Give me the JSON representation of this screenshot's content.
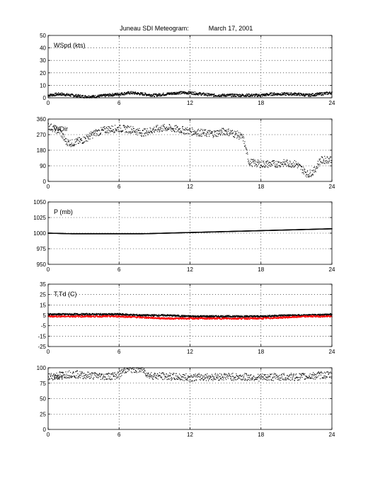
{
  "figure": {
    "title_left": "Juneau SDI Meteogram:",
    "title_right": "March 17, 2001"
  },
  "chart_data": [
    {
      "type": "line",
      "label": "WSpd (kts)",
      "xlim": [
        0,
        24
      ],
      "ylim": [
        0,
        50
      ],
      "xticks": [
        "0",
        "6",
        "12",
        "18",
        "24"
      ],
      "yticks": [
        "0",
        "10",
        "20",
        "30",
        "40",
        "50"
      ],
      "grid": true,
      "series": [
        {
          "color": "#000000",
          "x": [
            0,
            1,
            2,
            3,
            4,
            5,
            6,
            7,
            8,
            9,
            10,
            11,
            12,
            13,
            14,
            15,
            16,
            17,
            18,
            19,
            20,
            21,
            22,
            23,
            24
          ],
          "y": [
            2,
            3,
            2,
            1,
            1,
            2,
            3,
            4,
            3,
            2,
            3,
            4,
            4,
            3,
            2,
            2,
            2,
            2,
            2,
            3,
            3,
            3,
            2,
            3,
            4
          ]
        }
      ]
    },
    {
      "type": "scatter",
      "label": "WDir",
      "xlim": [
        0,
        24
      ],
      "ylim": [
        0,
        360
      ],
      "xticks": [
        "0",
        "6",
        "12",
        "18",
        "24"
      ],
      "yticks": [
        "0",
        "90",
        "180",
        "270",
        "360"
      ],
      "grid": true,
      "series": [
        {
          "color": "#000000",
          "x": [
            0,
            1,
            1.5,
            2,
            3,
            4,
            5,
            6,
            7,
            8,
            9,
            10,
            11,
            12,
            13,
            14,
            15,
            16,
            16.5,
            17,
            18,
            19,
            20,
            21,
            21.5,
            22,
            22.5,
            23,
            24
          ],
          "y": [
            320,
            290,
            230,
            220,
            240,
            280,
            300,
            305,
            300,
            280,
            300,
            310,
            300,
            290,
            280,
            275,
            290,
            270,
            250,
            110,
            100,
            100,
            105,
            100,
            70,
            40,
            60,
            120,
            130
          ]
        }
      ]
    },
    {
      "type": "line",
      "label": "P (mb)",
      "xlim": [
        0,
        24
      ],
      "ylim": [
        950,
        1050
      ],
      "xticks": [
        "0",
        "6",
        "12",
        "18",
        "24"
      ],
      "yticks": [
        "950",
        "975",
        "1000",
        "1025",
        "1050"
      ],
      "grid": true,
      "series": [
        {
          "color": "#000000",
          "x": [
            0,
            2,
            4,
            6,
            8,
            10,
            12,
            14,
            16,
            18,
            20,
            22,
            24
          ],
          "y": [
            1000,
            999,
            999,
            999,
            999,
            1000,
            1001,
            1002,
            1003,
            1004,
            1005,
            1006,
            1007
          ]
        }
      ]
    },
    {
      "type": "line",
      "label": "T,Td (C)",
      "xlim": [
        0,
        24
      ],
      "ylim": [
        -25,
        35
      ],
      "xticks": [
        "0",
        "6",
        "12",
        "18",
        "24"
      ],
      "yticks": [
        "-25",
        "-15",
        "-5",
        "5",
        "15",
        "25",
        "35"
      ],
      "grid": true,
      "series": [
        {
          "color": "#000000",
          "x": [
            0,
            2,
            4,
            6,
            8,
            10,
            12,
            14,
            16,
            18,
            20,
            22,
            24
          ],
          "y": [
            6,
            6,
            6,
            6,
            5,
            5,
            4,
            4,
            4,
            4,
            5,
            5,
            6
          ]
        },
        {
          "color": "#ff0000",
          "x": [
            0,
            2,
            4,
            6,
            8,
            10,
            12,
            14,
            16,
            18,
            20,
            22,
            24
          ],
          "y": [
            4,
            4,
            4,
            4,
            3,
            2,
            2,
            2,
            2,
            2,
            3,
            4,
            4
          ]
        }
      ]
    },
    {
      "type": "scatter",
      "label": "RH",
      "xlim": [
        0,
        24
      ],
      "ylim": [
        0,
        100
      ],
      "xticks": [
        "0",
        "6",
        "12",
        "18",
        "24"
      ],
      "yticks": [
        "0",
        "25",
        "50",
        "75",
        "100"
      ],
      "grid": true,
      "series": [
        {
          "color": "#000000",
          "x": [
            0,
            1,
            2,
            3,
            4,
            5,
            6,
            6.5,
            7,
            8,
            8.5,
            9,
            10,
            11,
            12,
            13,
            14,
            15,
            16,
            17,
            18,
            19,
            20,
            21,
            22,
            23,
            24
          ],
          "y": [
            85,
            88,
            90,
            88,
            87,
            86,
            88,
            97,
            98,
            97,
            88,
            87,
            86,
            85,
            84,
            85,
            85,
            86,
            85,
            85,
            84,
            85,
            85,
            85,
            86,
            88,
            88
          ]
        }
      ]
    }
  ]
}
